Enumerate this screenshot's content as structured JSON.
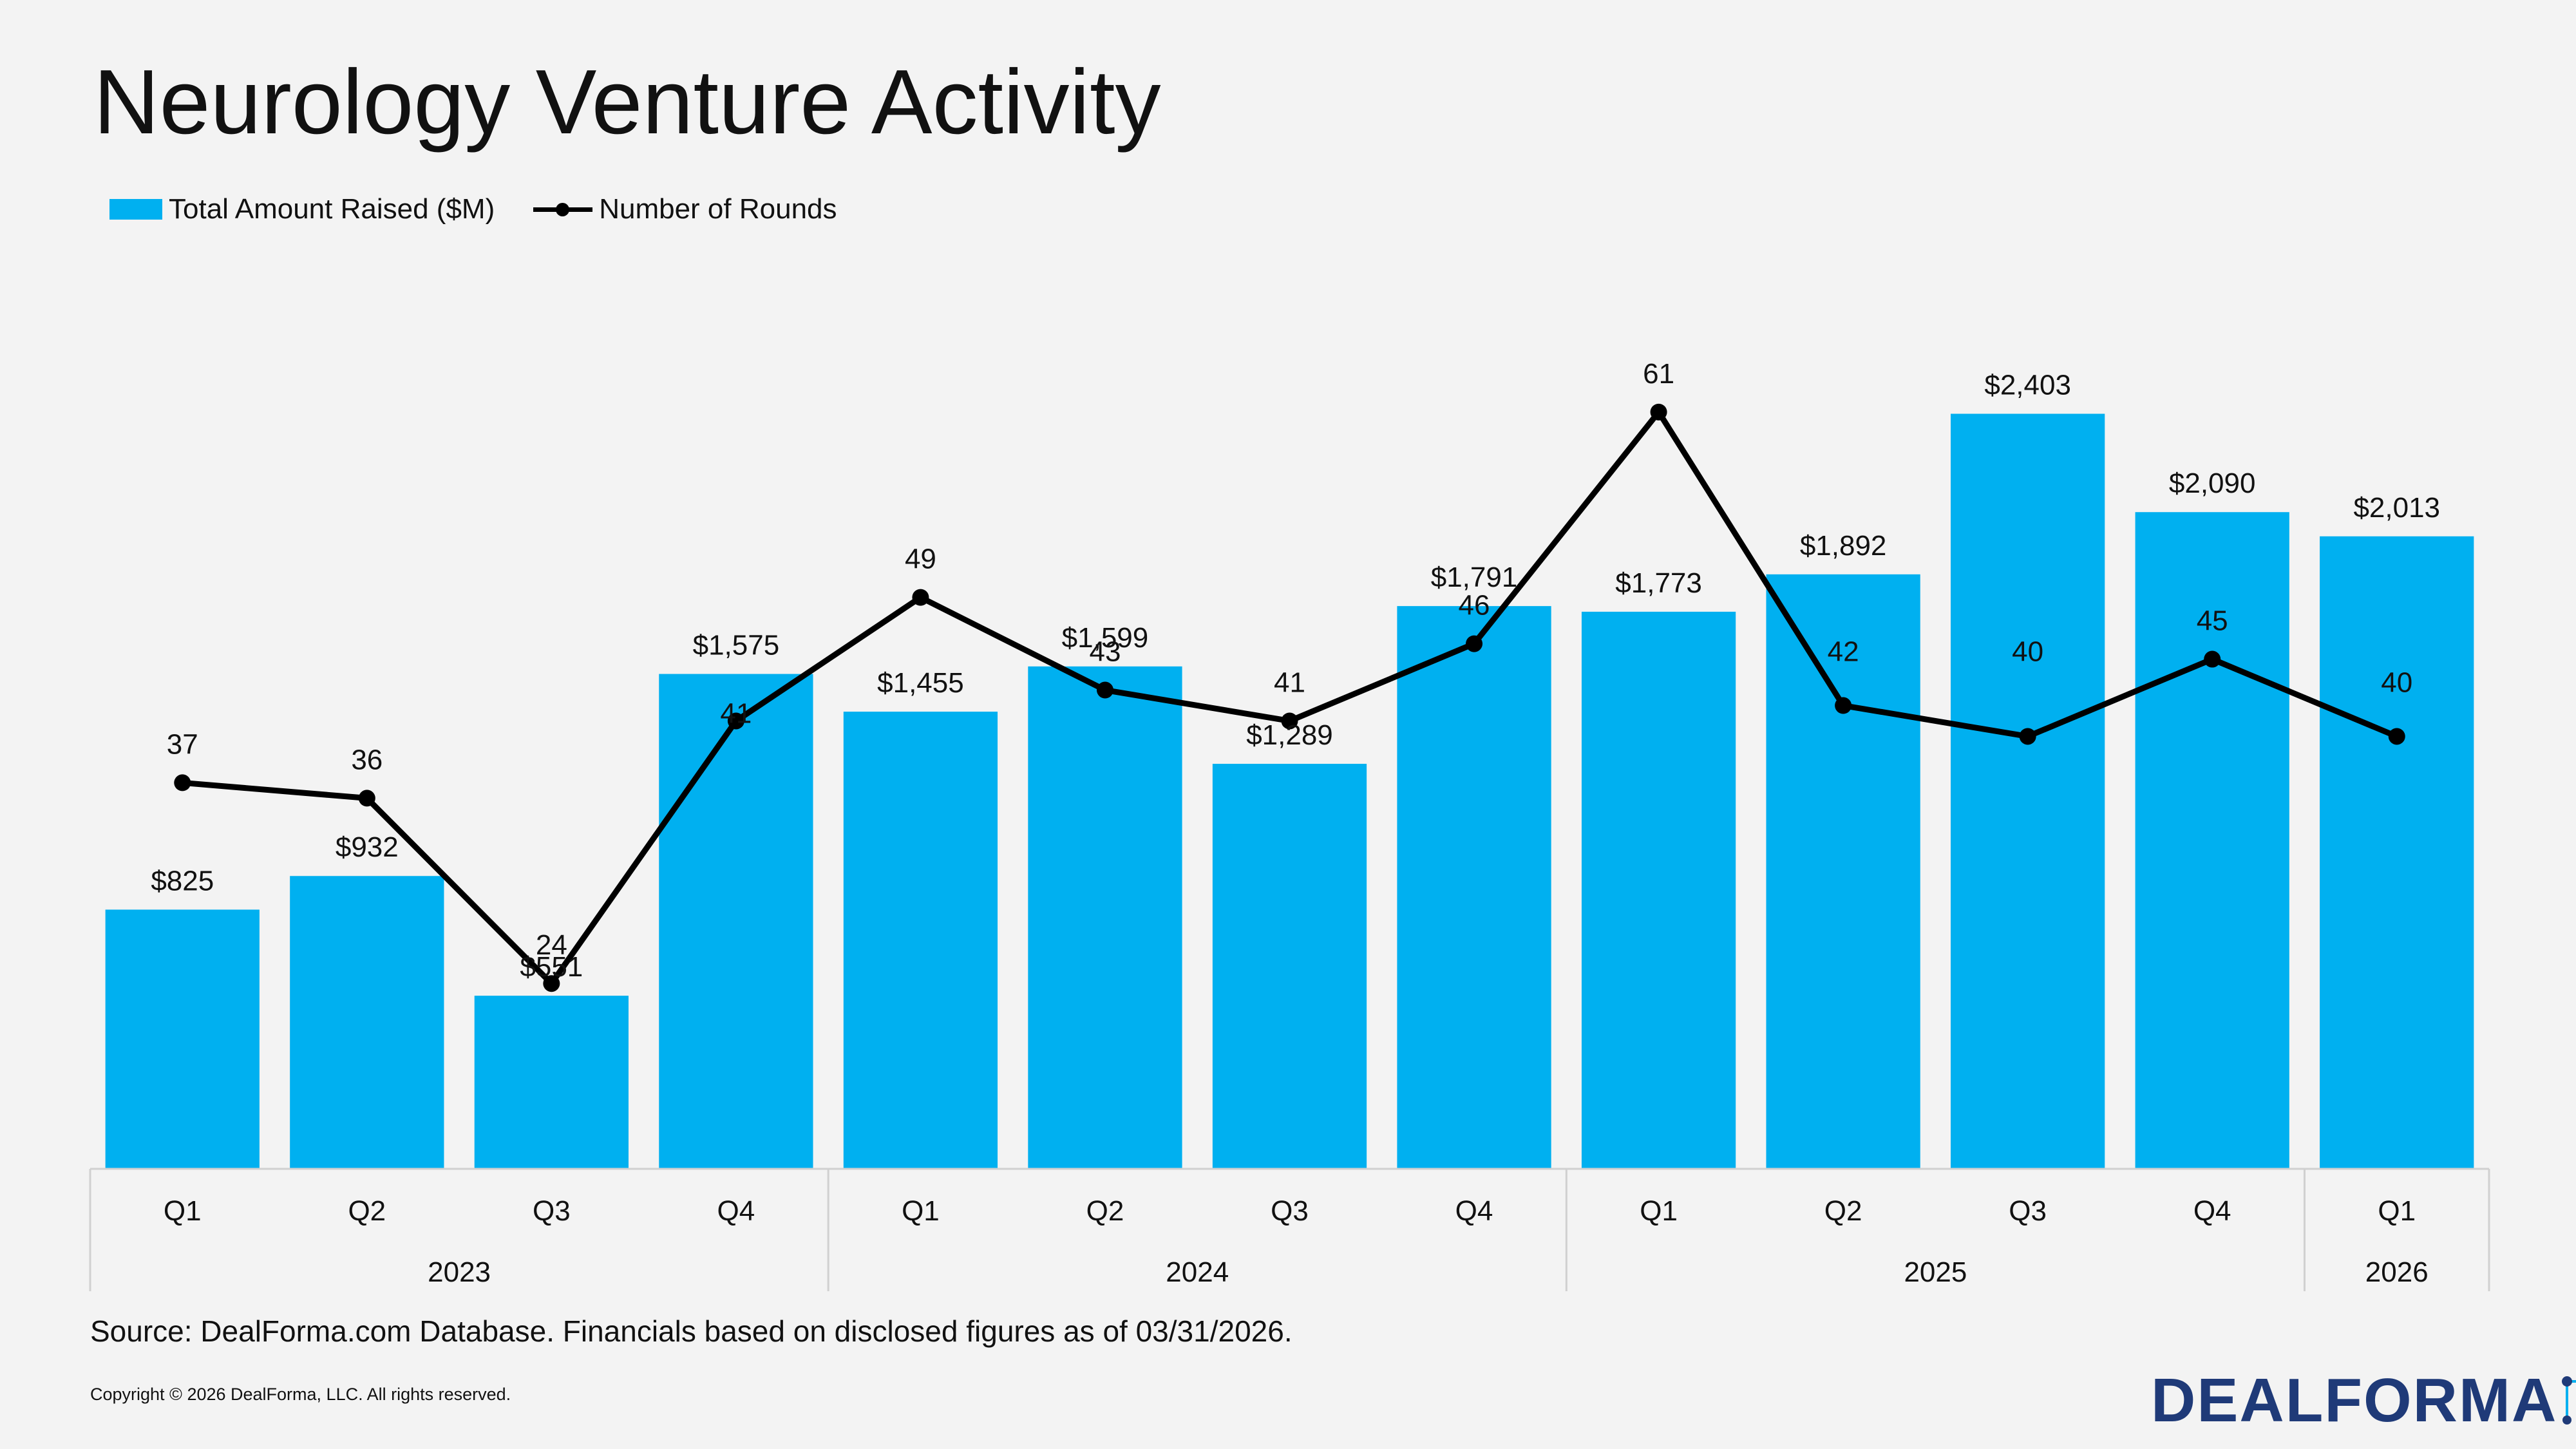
{
  "header": {
    "title": "Neurology Venture Activity"
  },
  "legend": {
    "bars_label": "Total Amount Raised ($M)",
    "line_label": "Number of Rounds"
  },
  "footer": {
    "source": "Source: DealForma.com Database. Financials based on disclosed figures as of 03/31/2026.",
    "copyright": "Copyright © 2026 DealForma, LLC. All rights reserved.",
    "logo_text": "DEALFORMA"
  },
  "chart_data": {
    "type": "bar",
    "title": "Neurology Venture Activity",
    "categories": [
      "Q1",
      "Q2",
      "Q3",
      "Q4",
      "Q1",
      "Q2",
      "Q3",
      "Q4",
      "Q1",
      "Q2",
      "Q3",
      "Q4",
      "Q1"
    ],
    "year_groups": [
      {
        "label": "2023",
        "count": 4
      },
      {
        "label": "2024",
        "count": 4
      },
      {
        "label": "2025",
        "count": 4
      },
      {
        "label": "2026",
        "count": 1
      }
    ],
    "series": [
      {
        "name": "Total Amount Raised ($M)",
        "type": "bar",
        "values": [
          825,
          932,
          551,
          1575,
          1455,
          1599,
          1289,
          1791,
          1773,
          1892,
          2403,
          2090,
          2013
        ],
        "labels": [
          "$825",
          "$932",
          "$551",
          "$1,575",
          "$1,455",
          "$1,599",
          "$1,289",
          "$1,791",
          "$1,773",
          "$1,892",
          "$2,403",
          "$2,090",
          "$2,013"
        ],
        "color": "#00b0f0"
      },
      {
        "name": "Number of Rounds",
        "type": "line",
        "values": [
          37,
          36,
          24,
          41,
          49,
          43,
          41,
          46,
          61,
          42,
          40,
          45,
          40
        ],
        "labels": [
          "37",
          "36",
          "24",
          "41",
          "49",
          "43",
          "41",
          "46",
          "61",
          "42",
          "40",
          "45",
          "40"
        ],
        "color": "#000000"
      }
    ],
    "bar_ylim": [
      0,
      2900
    ],
    "line_ylim": [
      12,
      71
    ],
    "line_label_offsets": [
      0,
      0,
      0,
      -2,
      0,
      0,
      0,
      0,
      0,
      1,
      3,
      0,
      1
    ],
    "legend_position": "top-left",
    "grid": false
  }
}
